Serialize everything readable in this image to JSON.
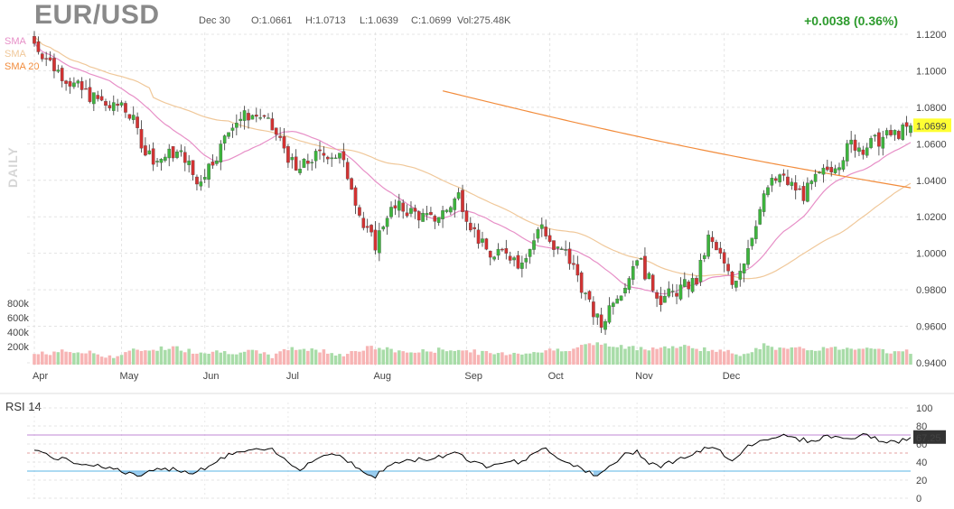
{
  "header": {
    "symbol": "EUR/USD",
    "date": "Dec 30",
    "open": "O:1.0661",
    "high": "H:1.0713",
    "low": "L:1.0639",
    "close": "C:1.0699",
    "volume": "Vol:275.48K",
    "change": "+0.0038 (0.36%)"
  },
  "period_label": "DAILY",
  "sma_labels": [
    "SMA",
    "SMA",
    "SMA 20"
  ],
  "rsi_label": "RSI 14",
  "colors": {
    "up": "#3db43d",
    "down": "#d23232",
    "vol_up": "#a8dca8",
    "vol_down": "#f7b4b4",
    "sma20": "#e78fc7",
    "sma50": "#f0c89a",
    "sma200": "#f28c3c",
    "rsi": "#000000",
    "rsi_over": "#c087d6",
    "rsi_under": "#5ab4e6",
    "last_price_bg": "#ffff33",
    "change": "#2e9b2e"
  },
  "chart_data": {
    "type": "candlestick",
    "price_axis": {
      "ylim": [
        0.94,
        1.12
      ],
      "ticks": [
        "1.1200",
        "1.1000",
        "1.0800",
        "1.0600",
        "1.0400",
        "1.0200",
        "1.0000",
        "0.9800",
        "0.9600",
        "0.9400"
      ],
      "last_price": "1.0699"
    },
    "x_tick_labels": [
      "Apr",
      "May",
      "Jun",
      "Jul",
      "Aug",
      "Sep",
      "Oct",
      "Nov",
      "Dec"
    ],
    "volume_axis": {
      "ticks": [
        "800k",
        "600k",
        "400k",
        "200k"
      ]
    },
    "rsi_axis": {
      "ylim": [
        0,
        100
      ],
      "ticks": [
        "100",
        "80",
        "60",
        "40",
        "20",
        "0"
      ],
      "overbought": 70,
      "oversold": 30,
      "last_value": "67.25"
    },
    "price_path": [
      [
        0,
        1.115
      ],
      [
        5,
        1.102
      ],
      [
        10,
        1.092
      ],
      [
        15,
        1.085
      ],
      [
        20,
        1.079
      ],
      [
        22,
        1.083
      ],
      [
        25,
        1.072
      ],
      [
        28,
        1.056
      ],
      [
        31,
        1.051
      ],
      [
        35,
        1.055
      ],
      [
        38,
        1.053
      ],
      [
        41,
        1.038
      ],
      [
        44,
        1.048
      ],
      [
        47,
        1.058
      ],
      [
        50,
        1.072
      ],
      [
        54,
        1.076
      ],
      [
        57,
        1.075
      ],
      [
        60,
        1.068
      ],
      [
        63,
        1.058
      ],
      [
        66,
        1.044
      ],
      [
        70,
        1.052
      ],
      [
        74,
        1.055
      ],
      [
        77,
        1.053
      ],
      [
        80,
        1.038
      ],
      [
        83,
        1.014
      ],
      [
        86,
        1.005
      ],
      [
        89,
        1.022
      ],
      [
        92,
        1.025
      ],
      [
        96,
        1.022
      ],
      [
        100,
        1.018
      ],
      [
        104,
        1.024
      ],
      [
        107,
        1.032
      ],
      [
        110,
        1.016
      ],
      [
        113,
        1.004
      ],
      [
        116,
        0.997
      ],
      [
        119,
        1.002
      ],
      [
        122,
        0.995
      ],
      [
        125,
        1.003
      ],
      [
        128,
        1.016
      ],
      [
        131,
        1.002
      ],
      [
        134,
        1.0
      ],
      [
        137,
        0.988
      ],
      [
        140,
        0.971
      ],
      [
        143,
        0.96
      ],
      [
        146,
        0.976
      ],
      [
        149,
        0.983
      ],
      [
        152,
        0.999
      ],
      [
        155,
        0.985
      ],
      [
        158,
        0.975
      ],
      [
        161,
        0.978
      ],
      [
        164,
        0.982
      ],
      [
        167,
        0.985
      ],
      [
        170,
        1.008
      ],
      [
        173,
        0.998
      ],
      [
        176,
        0.983
      ],
      [
        179,
        0.997
      ],
      [
        182,
        1.018
      ],
      [
        185,
        1.036
      ],
      [
        188,
        1.042
      ],
      [
        191,
        1.037
      ],
      [
        194,
        1.032
      ],
      [
        197,
        1.04
      ],
      [
        200,
        1.046
      ],
      [
        203,
        1.051
      ],
      [
        206,
        1.06
      ],
      [
        209,
        1.058
      ],
      [
        212,
        1.061
      ],
      [
        215,
        1.064
      ],
      [
        218,
        1.066
      ],
      [
        221,
        1.069
      ]
    ],
    "volume_path": [
      [
        0,
        180
      ],
      [
        8,
        230
      ],
      [
        15,
        200
      ],
      [
        20,
        130
      ],
      [
        25,
        240
      ],
      [
        35,
        300
      ],
      [
        40,
        230
      ],
      [
        50,
        220
      ],
      [
        55,
        220
      ],
      [
        60,
        150
      ],
      [
        65,
        290
      ],
      [
        70,
        260
      ],
      [
        78,
        180
      ],
      [
        85,
        300
      ],
      [
        95,
        210
      ],
      [
        105,
        270
      ],
      [
        115,
        190
      ],
      [
        125,
        210
      ],
      [
        135,
        280
      ],
      [
        142,
        370
      ],
      [
        147,
        300
      ],
      [
        155,
        290
      ],
      [
        165,
        310
      ],
      [
        170,
        260
      ],
      [
        178,
        180
      ],
      [
        184,
        330
      ],
      [
        190,
        260
      ],
      [
        200,
        280
      ],
      [
        206,
        290
      ],
      [
        212,
        310
      ],
      [
        216,
        200
      ],
      [
        221,
        230
      ]
    ],
    "rsi_path": [
      [
        0,
        55
      ],
      [
        4,
        46
      ],
      [
        10,
        40
      ],
      [
        18,
        35
      ],
      [
        22,
        30
      ],
      [
        26,
        24
      ],
      [
        30,
        30
      ],
      [
        35,
        33
      ],
      [
        40,
        28
      ],
      [
        45,
        38
      ],
      [
        50,
        50
      ],
      [
        55,
        53
      ],
      [
        60,
        53
      ],
      [
        64,
        40
      ],
      [
        67,
        33
      ],
      [
        72,
        46
      ],
      [
        76,
        50
      ],
      [
        79,
        42
      ],
      [
        83,
        28
      ],
      [
        86,
        24
      ],
      [
        90,
        38
      ],
      [
        95,
        42
      ],
      [
        100,
        44
      ],
      [
        104,
        48
      ],
      [
        107,
        52
      ],
      [
        110,
        40
      ],
      [
        114,
        36
      ],
      [
        118,
        41
      ],
      [
        122,
        40
      ],
      [
        126,
        48
      ],
      [
        129,
        56
      ],
      [
        133,
        42
      ],
      [
        137,
        36
      ],
      [
        140,
        28
      ],
      [
        142,
        23
      ],
      [
        145,
        35
      ],
      [
        149,
        48
      ],
      [
        152,
        52
      ],
      [
        155,
        40
      ],
      [
        158,
        36
      ],
      [
        163,
        44
      ],
      [
        167,
        50
      ],
      [
        170,
        56
      ],
      [
        173,
        52
      ],
      [
        176,
        42
      ],
      [
        180,
        58
      ],
      [
        184,
        65
      ],
      [
        188,
        70
      ],
      [
        192,
        66
      ],
      [
        196,
        63
      ],
      [
        200,
        69
      ],
      [
        205,
        66
      ],
      [
        210,
        70
      ],
      [
        214,
        63
      ],
      [
        218,
        62
      ],
      [
        221,
        67.25
      ]
    ]
  }
}
